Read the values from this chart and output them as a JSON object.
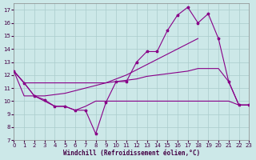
{
  "xlabel": "Windchill (Refroidissement éolien,°C)",
  "background_color": "#cce8e8",
  "grid_color": "#aacccc",
  "line_color": "#880088",
  "xlim": [
    0,
    23
  ],
  "ylim": [
    7,
    17.5
  ],
  "xticks": [
    0,
    1,
    2,
    3,
    4,
    5,
    6,
    7,
    8,
    9,
    10,
    11,
    12,
    13,
    14,
    15,
    16,
    17,
    18,
    19,
    20,
    21,
    22,
    23
  ],
  "yticks": [
    7,
    8,
    9,
    10,
    11,
    12,
    13,
    14,
    15,
    16,
    17
  ],
  "line1_x": [
    0,
    1,
    2,
    3,
    4,
    5,
    6,
    7,
    8,
    9,
    10,
    11,
    12,
    13,
    14,
    15,
    16,
    17,
    18,
    19,
    20,
    21,
    22,
    23
  ],
  "line1_y": [
    12.3,
    11.4,
    10.4,
    10.1,
    9.6,
    9.6,
    9.3,
    9.3,
    7.5,
    9.9,
    11.5,
    11.5,
    13.0,
    13.8,
    13.8,
    15.4,
    16.6,
    17.2,
    16.0,
    16.7,
    14.8,
    11.5,
    9.7,
    9.7
  ],
  "line2_x": [
    0,
    1,
    2,
    3,
    4,
    5,
    6,
    7,
    8,
    9,
    10,
    11,
    12,
    13,
    14,
    15,
    16,
    17,
    18
  ],
  "line2_y": [
    12.3,
    11.4,
    10.4,
    10.4,
    10.5,
    10.6,
    10.8,
    11.0,
    11.2,
    11.4,
    11.7,
    12.0,
    12.4,
    12.8,
    13.2,
    13.6,
    14.0,
    14.4,
    14.8
  ],
  "line3_x": [
    0,
    1,
    2,
    3,
    4,
    5,
    6,
    7,
    8,
    9,
    10,
    11,
    12,
    13,
    14,
    15,
    16,
    17,
    18,
    19,
    20,
    21,
    22,
    23
  ],
  "line3_y": [
    12.3,
    11.4,
    11.4,
    11.4,
    11.4,
    11.4,
    11.4,
    11.4,
    11.4,
    11.4,
    11.5,
    11.6,
    11.7,
    11.9,
    12.0,
    12.1,
    12.2,
    12.3,
    12.5,
    12.5,
    12.5,
    11.5,
    9.7,
    9.7
  ],
  "line4_x": [
    0,
    1,
    2,
    3,
    4,
    5,
    6,
    7,
    8,
    9,
    10,
    11,
    12,
    13,
    14,
    15,
    16,
    17,
    18,
    19,
    20,
    21,
    22,
    23
  ],
  "line4_y": [
    12.3,
    10.4,
    10.4,
    10.0,
    9.6,
    9.6,
    9.3,
    9.6,
    10.0,
    10.0,
    10.0,
    10.0,
    10.0,
    10.0,
    10.0,
    10.0,
    10.0,
    10.0,
    10.0,
    10.0,
    10.0,
    10.0,
    9.7,
    9.7
  ]
}
